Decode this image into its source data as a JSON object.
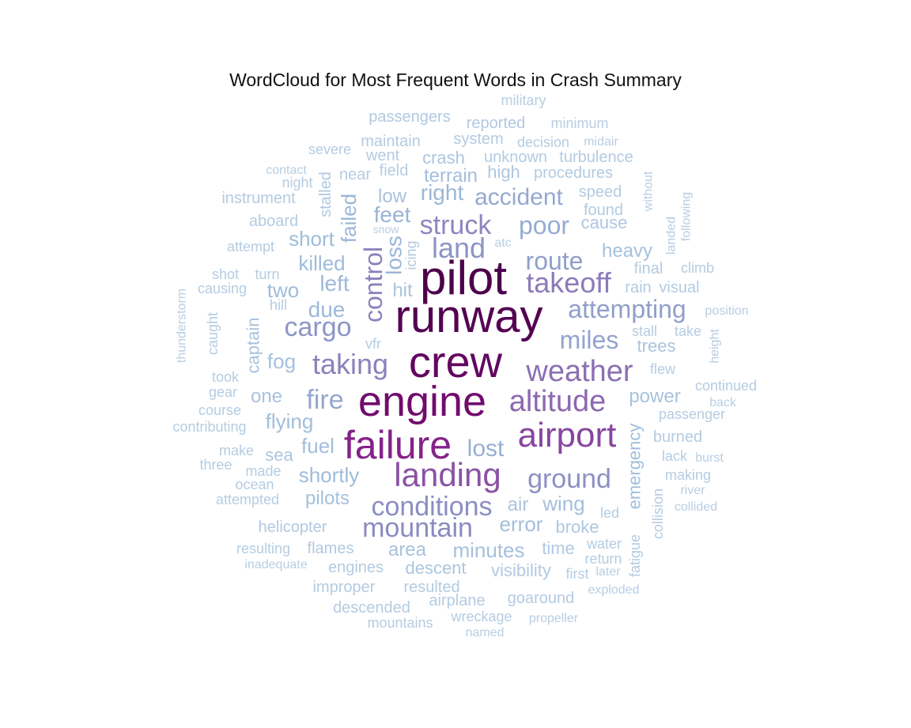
{
  "chart_data": {
    "type": "wordcloud",
    "title": "WordCloud for Most Frequent Words in Crash Summary",
    "colormap": "BuPu",
    "words": [
      {
        "text": "pilot",
        "weight": 1.0
      },
      {
        "text": "runway",
        "weight": 0.98
      },
      {
        "text": "crew",
        "weight": 0.94
      },
      {
        "text": "engine",
        "weight": 0.9
      },
      {
        "text": "failure",
        "weight": 0.8
      },
      {
        "text": "airport",
        "weight": 0.7
      },
      {
        "text": "landing",
        "weight": 0.66
      },
      {
        "text": "altitude",
        "weight": 0.58
      },
      {
        "text": "weather",
        "weight": 0.56
      },
      {
        "text": "takeoff",
        "weight": 0.52
      },
      {
        "text": "taking",
        "weight": 0.5
      },
      {
        "text": "control",
        "weight": 0.5
      },
      {
        "text": "struck",
        "weight": 0.48
      },
      {
        "text": "mountain",
        "weight": 0.47
      },
      {
        "text": "conditions",
        "weight": 0.46
      },
      {
        "text": "ground",
        "weight": 0.45
      },
      {
        "text": "land",
        "weight": 0.44
      },
      {
        "text": "cargo",
        "weight": 0.43
      },
      {
        "text": "route",
        "weight": 0.4
      },
      {
        "text": "attempting",
        "weight": 0.4
      },
      {
        "text": "miles",
        "weight": 0.38
      },
      {
        "text": "fire",
        "weight": 0.37
      },
      {
        "text": "accident",
        "weight": 0.36
      },
      {
        "text": "poor",
        "weight": 0.35
      },
      {
        "text": "lost",
        "weight": 0.34
      },
      {
        "text": "feet",
        "weight": 0.32
      },
      {
        "text": "right",
        "weight": 0.31
      },
      {
        "text": "loss",
        "weight": 0.31
      },
      {
        "text": "failed",
        "weight": 0.31
      },
      {
        "text": "left",
        "weight": 0.3
      },
      {
        "text": "due",
        "weight": 0.3
      },
      {
        "text": "shortly",
        "weight": 0.29
      },
      {
        "text": "short",
        "weight": 0.29
      },
      {
        "text": "killed",
        "weight": 0.29
      },
      {
        "text": "two",
        "weight": 0.29
      },
      {
        "text": "fuel",
        "weight": 0.28
      },
      {
        "text": "flying",
        "weight": 0.28
      },
      {
        "text": "emergency",
        "weight": 0.28
      },
      {
        "text": "wing",
        "weight": 0.27
      },
      {
        "text": "error",
        "weight": 0.27
      },
      {
        "text": "terrain",
        "weight": 0.27
      },
      {
        "text": "fog",
        "weight": 0.26
      },
      {
        "text": "heavy",
        "weight": 0.26
      },
      {
        "text": "pilots",
        "weight": 0.26
      },
      {
        "text": "minutes",
        "weight": 0.26
      },
      {
        "text": "one",
        "weight": 0.25
      },
      {
        "text": "low",
        "weight": 0.25
      },
      {
        "text": "power",
        "weight": 0.25
      },
      {
        "text": "captain",
        "weight": 0.25
      },
      {
        "text": "area",
        "weight": 0.25
      },
      {
        "text": "hit",
        "weight": 0.24
      },
      {
        "text": "air",
        "weight": 0.24
      },
      {
        "text": "trees",
        "weight": 0.24
      },
      {
        "text": "descent",
        "weight": 0.23
      },
      {
        "text": "crash",
        "weight": 0.23
      },
      {
        "text": "sea",
        "weight": 0.23
      },
      {
        "text": "broke",
        "weight": 0.22
      },
      {
        "text": "stalled",
        "weight": 0.22
      },
      {
        "text": "cause",
        "weight": 0.22
      },
      {
        "text": "high",
        "weight": 0.22
      },
      {
        "text": "icing",
        "weight": 0.21
      },
      {
        "text": "helicopter",
        "weight": 0.21
      },
      {
        "text": "flames",
        "weight": 0.21
      },
      {
        "text": "time",
        "weight": 0.21
      },
      {
        "text": "visibility",
        "weight": 0.21
      },
      {
        "text": "reported",
        "weight": 0.21
      },
      {
        "text": "passengers",
        "weight": 0.21
      },
      {
        "text": "instrument",
        "weight": 0.2
      },
      {
        "text": "aboard",
        "weight": 0.2
      },
      {
        "text": "speed",
        "weight": 0.2
      },
      {
        "text": "found",
        "weight": 0.2
      },
      {
        "text": "final",
        "weight": 0.2
      },
      {
        "text": "rain",
        "weight": 0.2
      },
      {
        "text": "visual",
        "weight": 0.2
      },
      {
        "text": "burned",
        "weight": 0.2
      },
      {
        "text": "maintain",
        "weight": 0.2
      },
      {
        "text": "system",
        "weight": 0.2
      },
      {
        "text": "unknown",
        "weight": 0.2
      },
      {
        "text": "went",
        "weight": 0.2
      },
      {
        "text": "field",
        "weight": 0.2
      },
      {
        "text": "near",
        "weight": 0.2
      },
      {
        "text": "procedures",
        "weight": 0.2
      },
      {
        "text": "turbulence",
        "weight": 0.2
      },
      {
        "text": "collision",
        "weight": 0.2
      },
      {
        "text": "fatigue",
        "weight": 0.2
      },
      {
        "text": "resulted",
        "weight": 0.2
      },
      {
        "text": "improper",
        "weight": 0.2
      },
      {
        "text": "engines",
        "weight": 0.2
      },
      {
        "text": "water",
        "weight": 0.2
      },
      {
        "text": "airplane",
        "weight": 0.2
      },
      {
        "text": "goaround",
        "weight": 0.2
      },
      {
        "text": "descended",
        "weight": 0.19
      },
      {
        "text": "mountains",
        "weight": 0.19
      },
      {
        "text": "wreckage",
        "weight": 0.19
      },
      {
        "text": "return",
        "weight": 0.19
      },
      {
        "text": "first",
        "weight": 0.19
      },
      {
        "text": "led",
        "weight": 0.19
      },
      {
        "text": "lack",
        "weight": 0.19
      },
      {
        "text": "making",
        "weight": 0.19
      },
      {
        "text": "passenger",
        "weight": 0.19
      },
      {
        "text": "continued",
        "weight": 0.19
      },
      {
        "text": "flew",
        "weight": 0.19
      },
      {
        "text": "height",
        "weight": 0.19
      },
      {
        "text": "take",
        "weight": 0.19
      },
      {
        "text": "stall",
        "weight": 0.19
      },
      {
        "text": "climb",
        "weight": 0.19
      },
      {
        "text": "landed",
        "weight": 0.19
      },
      {
        "text": "following",
        "weight": 0.18
      },
      {
        "text": "decision",
        "weight": 0.19
      },
      {
        "text": "severe",
        "weight": 0.19
      },
      {
        "text": "night",
        "weight": 0.19
      },
      {
        "text": "attempt",
        "weight": 0.19
      },
      {
        "text": "shot",
        "weight": 0.19
      },
      {
        "text": "turn",
        "weight": 0.19
      },
      {
        "text": "causing",
        "weight": 0.19
      },
      {
        "text": "hill",
        "weight": 0.19
      },
      {
        "text": "caught",
        "weight": 0.19
      },
      {
        "text": "took",
        "weight": 0.19
      },
      {
        "text": "gear",
        "weight": 0.19
      },
      {
        "text": "course",
        "weight": 0.19
      },
      {
        "text": "contributing",
        "weight": 0.19
      },
      {
        "text": "make",
        "weight": 0.19
      },
      {
        "text": "three",
        "weight": 0.19
      },
      {
        "text": "made",
        "weight": 0.19
      },
      {
        "text": "ocean",
        "weight": 0.19
      },
      {
        "text": "attempted",
        "weight": 0.19
      },
      {
        "text": "resulting",
        "weight": 0.19
      },
      {
        "text": "thunderstorm",
        "weight": 0.18
      },
      {
        "text": "vfr",
        "weight": 0.19
      },
      {
        "text": "military",
        "weight": 0.18
      },
      {
        "text": "minimum",
        "weight": 0.18
      },
      {
        "text": "midair",
        "weight": 0.18
      },
      {
        "text": "contact",
        "weight": 0.18
      },
      {
        "text": "without",
        "weight": 0.18
      },
      {
        "text": "snow",
        "weight": 0.18
      },
      {
        "text": "position",
        "weight": 0.18
      },
      {
        "text": "back",
        "weight": 0.18
      },
      {
        "text": "burst",
        "weight": 0.18
      },
      {
        "text": "river",
        "weight": 0.18
      },
      {
        "text": "collided",
        "weight": 0.18
      },
      {
        "text": "later",
        "weight": 0.18
      },
      {
        "text": "exploded",
        "weight": 0.18
      },
      {
        "text": "propeller",
        "weight": 0.18
      },
      {
        "text": "named",
        "weight": 0.18
      },
      {
        "text": "inadequate",
        "weight": 0.18
      },
      {
        "text": "atc",
        "weight": 0.18
      }
    ]
  },
  "colors": {
    "scale": [
      "#f7fcfd",
      "#e0ecf4",
      "#bfd3e6",
      "#9ebcda",
      "#8c96c6",
      "#8c6bb1",
      "#88419d",
      "#810f7c",
      "#4d004b"
    ]
  }
}
